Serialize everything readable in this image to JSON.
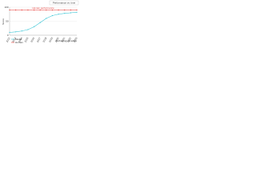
{
  "chart_data": {
    "type": "line",
    "title": "Performance vs. time",
    "annotation": "Human performance",
    "x_label": "Technology timeline",
    "y_label": "Score",
    "categories": [
      "2012",
      "2013",
      "2014",
      "2015",
      "2016",
      "2017",
      "2018",
      "2019",
      "2020",
      "2021",
      "2022",
      "2023"
    ],
    "series": [
      {
        "name": "Model",
        "color": "#3cc6d6",
        "values": [
          10,
          12,
          15,
          20,
          30,
          45,
          60,
          70,
          75,
          78,
          80,
          82
        ]
      },
      {
        "name": "Human",
        "color": "#e53935",
        "values": [
          90,
          90,
          90,
          90,
          90,
          90,
          90,
          90,
          90,
          90,
          90,
          90
        ]
      }
    ],
    "ylim": [
      0,
      100
    ],
    "yticks": [
      0,
      50,
      100
    ],
    "grid": true
  }
}
